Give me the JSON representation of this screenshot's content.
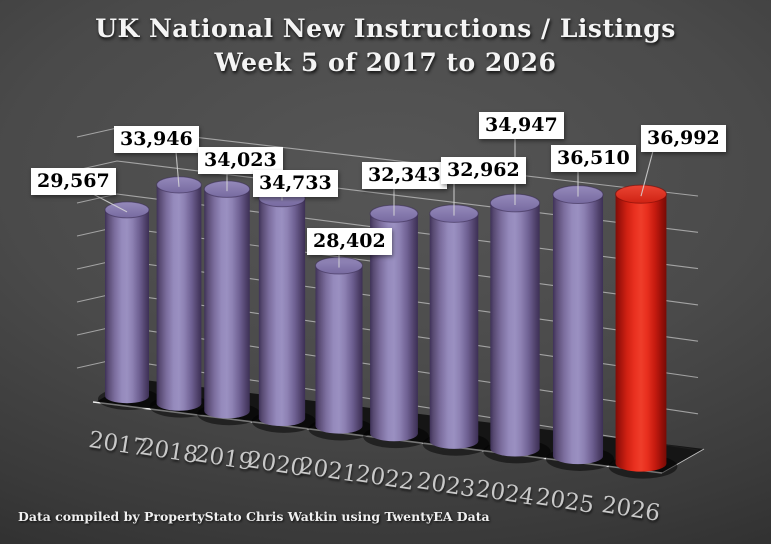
{
  "title": {
    "line1": "UK National New Instructions / Listings",
    "line2": "Week 5 of 2017 to 2026"
  },
  "footer": {
    "credit": "Data compiled by PropertyStato Chris Watkin using TwentyEA Data"
  },
  "chart_data": {
    "type": "bar",
    "subtype": "3d-cylinder",
    "title": "UK National New Instructions / Listings Week 5 of 2017 to 2026",
    "categories": [
      "2017",
      "2018",
      "2019",
      "2020",
      "2021",
      "2022",
      "2023",
      "2024",
      "2025",
      "2026"
    ],
    "values": [
      29567,
      33946,
      34023,
      34733,
      28402,
      32343,
      32962,
      34947,
      36510,
      36992
    ],
    "data_labels": [
      "29,567",
      "33,946",
      "34,023",
      "34,733",
      "28,402",
      "32,343",
      "32,962",
      "34,947",
      "36,510",
      "36,992"
    ],
    "highlight_index": 9,
    "legend": "none",
    "value_axis_labels": "none",
    "gridlines": true,
    "colors": {
      "bar": "#8a7bb0",
      "bar_edge": "#453661",
      "highlight": "#e5251a",
      "highlight_edge": "#8c0f08",
      "label_box_bg": "#ffffff",
      "label_text": "#000000",
      "title_text": "#f4f4f4",
      "year_text": "#c9c9c9",
      "gridline": "#c9c9c9",
      "floor": "#111111",
      "background": "#3a3a3a"
    }
  }
}
